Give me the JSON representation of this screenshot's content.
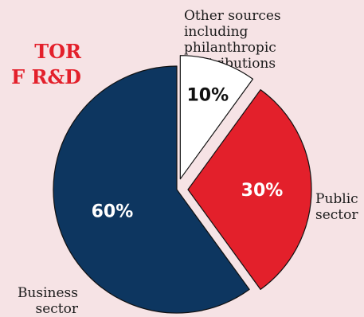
{
  "chart_data": {
    "type": "pie",
    "title_lines": [
      "TOR",
      "F R&D"
    ],
    "slices": [
      {
        "label": "Other sources\nincluding\nphilanthropic\ncontributions",
        "value": 10,
        "display": "10%",
        "color": "#ffffff",
        "text_color": "#111111"
      },
      {
        "label": "Public\nsector",
        "value": 30,
        "display": "30%",
        "color": "#e3202b",
        "text_color": "#ffffff"
      },
      {
        "label": "Business\nsector",
        "value": 60,
        "display": "60%",
        "color": "#0d3660",
        "text_color": "#ffffff"
      }
    ]
  },
  "colors": {
    "background": "#f6e3e5",
    "accent": "#e3202b",
    "outline": "#111111"
  }
}
